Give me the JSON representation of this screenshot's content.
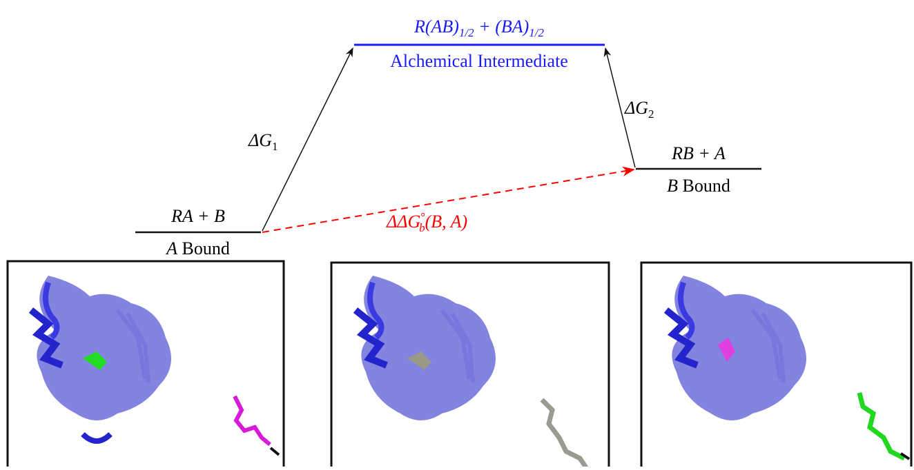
{
  "top": {
    "formula": {
      "part1": "R(AB)",
      "sub1": "1/2",
      "part2": " + (BA)",
      "sub2": "1/2"
    },
    "label": "Alchemical Intermediate"
  },
  "right": {
    "formula": "RB + A",
    "label_var": "B",
    "label_text": " Bound"
  },
  "left": {
    "formula": "RA + B",
    "label_var": "A",
    "label_text": " Bound"
  },
  "arrows": {
    "dg1": {
      "symbol": "ΔG",
      "sub": "1"
    },
    "dg2": {
      "symbol": "ΔG",
      "sub": "2"
    },
    "ddg": {
      "symbol": "ΔΔG",
      "sup": "°",
      "sub": "b",
      "args": "(B, A)"
    }
  }
}
